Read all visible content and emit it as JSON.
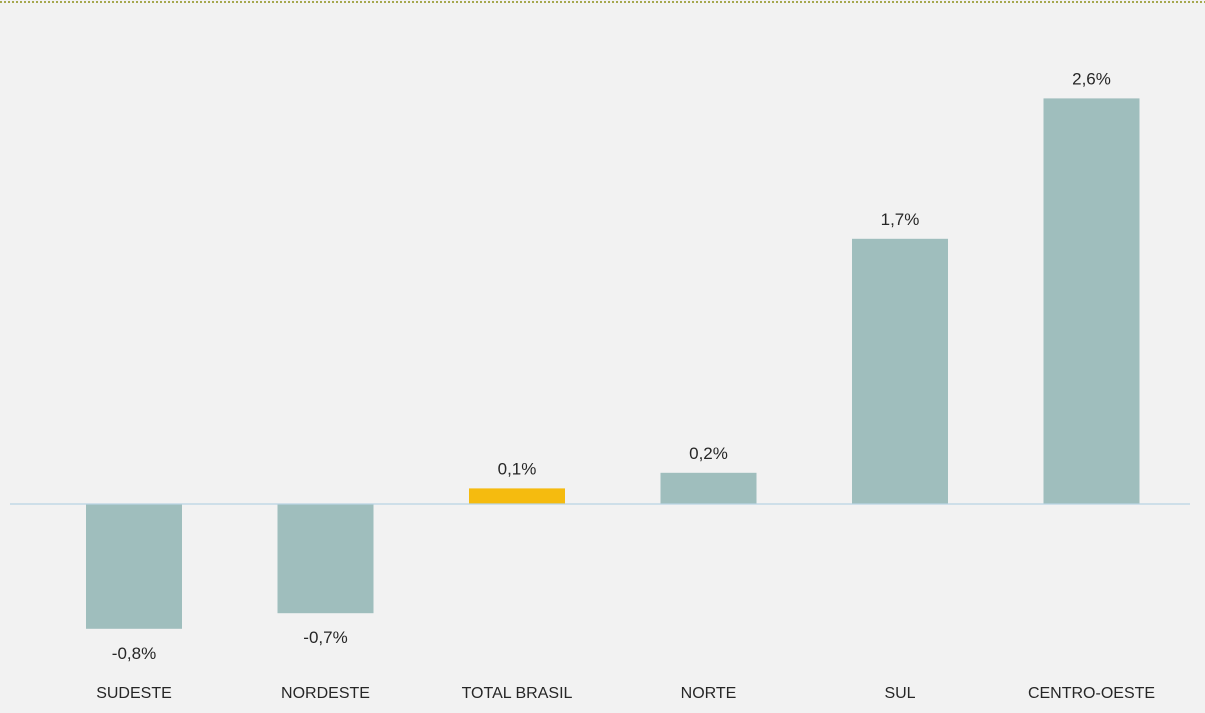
{
  "chart_data": {
    "type": "bar",
    "categories": [
      "SUDESTE",
      "NORDESTE",
      "TOTAL BRASIL",
      "NORTE",
      "SUL",
      "CENTRO-OESTE"
    ],
    "values": [
      -0.8,
      -0.7,
      0.1,
      0.2,
      1.7,
      2.6
    ],
    "data_labels": [
      "-0,8%",
      "-0,7%",
      "0,1%",
      "0,2%",
      "1,7%",
      "2,6%"
    ],
    "highlight_category": "TOTAL BRASIL",
    "ylim": [
      -0.8,
      2.6
    ],
    "grid": false,
    "legend": "none",
    "title": "",
    "xlabel": "",
    "ylabel": ""
  },
  "colors": {
    "bar": "#9fbebd",
    "highlight_bar": "#f5bb0f",
    "background": "#f2f2f2",
    "border": "#a6a84e",
    "axis_line": "#b9d4e4",
    "text": "#262626"
  }
}
